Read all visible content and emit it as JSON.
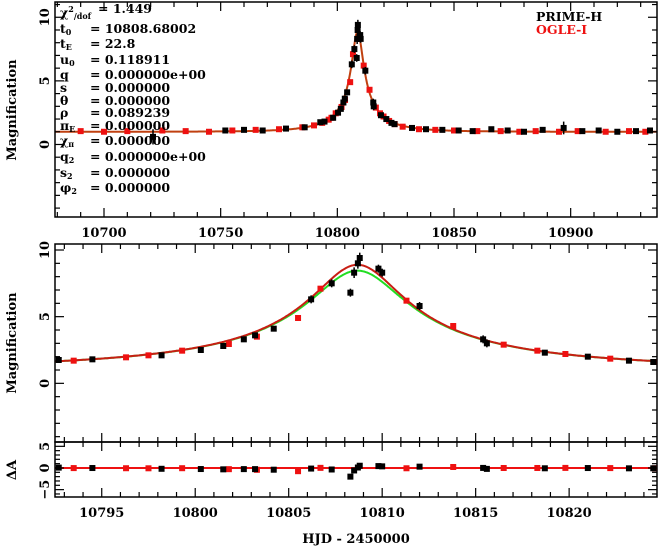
{
  "chart_data": {
    "type": "scatter",
    "xlabel": "HJD - 2450000",
    "ylabel_top": "Magnification",
    "ylabel_middle": "Magnification",
    "ylabel_residual": "ΔA",
    "legend": {
      "placement": "top-right",
      "entries": [
        {
          "name": "PRIME-H",
          "color": "#000000"
        },
        {
          "name": "OGLE-I",
          "color": "#ee1111"
        }
      ]
    },
    "colors": {
      "prime": "#000000",
      "ogle": "#ee1111",
      "model_red": "#c81e14",
      "model_green": "#22dd22",
      "top_model": "#c04010",
      "residual_line": "#ee1111"
    },
    "panels": {
      "top": {
        "xlim": [
          10679,
          10937
        ],
        "ylim": [
          -5.7,
          11.2
        ],
        "xticks": [
          10700,
          10750,
          10800,
          10850,
          10900
        ],
        "yticks": [
          0,
          5,
          10
        ]
      },
      "middle": {
        "xlim": [
          10792.5,
          10824.7
        ],
        "ylim": [
          -4.4,
          10.45
        ],
        "xticks": [
          10795,
          10800,
          10805,
          10810,
          10815,
          10820
        ],
        "yticks": [
          0,
          5,
          10
        ]
      },
      "residual": {
        "xlim": [
          10792.5,
          10824.7
        ],
        "ylim": [
          -6.7,
          6.0
        ],
        "yticks": [
          -5,
          0,
          5
        ]
      }
    },
    "models": {
      "red": {
        "t0": 10808.68002,
        "tE": 22.8,
        "u0": 0.113
      },
      "green": {
        "t0": 10808.68002,
        "tE": 22.8,
        "u0": 0.118911
      }
    },
    "params": [
      {
        "sym": "χ",
        "sup": "2",
        "sub": "/dof",
        "value": "= 1.449"
      },
      {
        "sym": "t",
        "sub": "0",
        "value": "= 10808.68002"
      },
      {
        "sym": "t",
        "sub": "E",
        "value": "= 22.8"
      },
      {
        "sym": "u",
        "sub": "0",
        "value": "= 0.118911"
      },
      {
        "sym": "q",
        "sub": "",
        "value": "= 0.000000e+00"
      },
      {
        "sym": "s",
        "sub": "",
        "value": "= 0.000000"
      },
      {
        "sym": "θ",
        "sub": "",
        "value": "= 0.000000"
      },
      {
        "sym": "ρ",
        "sub": "",
        "value": "= 0.089239"
      },
      {
        "sym": "π",
        "sub": "E",
        "value": "= 0.000000"
      },
      {
        "sym": "χ",
        "sub": "π",
        "value": "= 0.000000"
      },
      {
        "sym": "q",
        "sub": "2",
        "value": "= 0.000000e+00"
      },
      {
        "sym": "s",
        "sub": "2",
        "value": "= 0.000000"
      },
      {
        "sym": "φ",
        "sub": "2",
        "value": "= 0.000000"
      }
    ],
    "prime": [
      [
        10721,
        0.6,
        0.6
      ],
      [
        10752,
        1.1,
        0.15
      ],
      [
        10760,
        1.15,
        0.15
      ],
      [
        10768,
        1.1,
        0.15
      ],
      [
        10778,
        1.25,
        0.15
      ],
      [
        10786,
        1.35,
        0.15
      ],
      [
        10792.7,
        1.75,
        0.15
      ],
      [
        10794.5,
        1.8,
        0.15
      ],
      [
        10798.2,
        2.1,
        0.15
      ],
      [
        10800.3,
        2.5,
        0.15
      ],
      [
        10801.5,
        2.8,
        0.15
      ],
      [
        10802.6,
        3.3,
        0.2
      ],
      [
        10803.2,
        3.6,
        0.2
      ],
      [
        10804.2,
        4.1,
        0.2
      ],
      [
        10806.2,
        6.3,
        0.3
      ],
      [
        10807.3,
        7.5,
        0.3
      ],
      [
        10808.5,
        8.3,
        0.4
      ],
      [
        10808.7,
        9.0,
        0.4
      ],
      [
        10808.8,
        9.4,
        0.4
      ],
      [
        10808.3,
        6.8,
        0.3
      ],
      [
        10809.8,
        8.6,
        0.3
      ],
      [
        10810.0,
        8.3,
        0.3
      ],
      [
        10812.0,
        5.8,
        0.3
      ],
      [
        10815.4,
        3.3,
        0.3
      ],
      [
        10815.6,
        3.0,
        0.3
      ],
      [
        10818.7,
        2.3,
        0.2
      ],
      [
        10821.0,
        2.0,
        0.15
      ],
      [
        10823.2,
        1.7,
        0.15
      ],
      [
        10824.5,
        1.6,
        0.15
      ],
      [
        10832,
        1.3,
        0.15
      ],
      [
        10838,
        1.2,
        0.15
      ],
      [
        10845,
        1.15,
        0.15
      ],
      [
        10852,
        1.1,
        0.15
      ],
      [
        10858,
        1.05,
        0.15
      ],
      [
        10866,
        1.2,
        0.15
      ],
      [
        10873,
        1.1,
        0.15
      ],
      [
        10880,
        1.0,
        0.15
      ],
      [
        10888,
        1.15,
        0.15
      ],
      [
        10897,
        1.3,
        0.5
      ],
      [
        10905,
        1.05,
        0.15
      ],
      [
        10912,
        1.1,
        0.15
      ],
      [
        10920,
        1.0,
        0.15
      ],
      [
        10928,
        1.05,
        0.15
      ],
      [
        10934,
        1.1,
        0.15
      ]
    ],
    "ogle": [
      [
        10690,
        1.05
      ],
      [
        10700,
        1.0
      ],
      [
        10710,
        1.05
      ],
      [
        10725,
        1.1
      ],
      [
        10735,
        1.05
      ],
      [
        10745,
        1.0
      ],
      [
        10755,
        1.1
      ],
      [
        10765,
        1.15
      ],
      [
        10775,
        1.2
      ],
      [
        10785,
        1.35
      ],
      [
        10790,
        1.5
      ],
      [
        10793.5,
        1.7
      ],
      [
        10796.3,
        1.95
      ],
      [
        10797.5,
        2.1
      ],
      [
        10799.3,
        2.45
      ],
      [
        10801.8,
        2.95
      ],
      [
        10803.3,
        3.5
      ],
      [
        10805.5,
        4.9
      ],
      [
        10806.7,
        7.1
      ],
      [
        10811.3,
        6.2
      ],
      [
        10813.8,
        4.3
      ],
      [
        10816.5,
        2.9
      ],
      [
        10818.3,
        2.45
      ],
      [
        10819.8,
        2.2
      ],
      [
        10822.2,
        1.85
      ],
      [
        10824.6,
        1.6
      ],
      [
        10828,
        1.4
      ],
      [
        10835,
        1.2
      ],
      [
        10842,
        1.15
      ],
      [
        10850,
        1.1
      ],
      [
        10860,
        1.05
      ],
      [
        10870,
        1.05
      ],
      [
        10878,
        1.0
      ],
      [
        10885,
        1.05
      ],
      [
        10895,
        1.0
      ],
      [
        10903,
        1.05
      ],
      [
        10915,
        1.0
      ],
      [
        10925,
        1.05
      ],
      [
        10932,
        1.0
      ]
    ]
  }
}
